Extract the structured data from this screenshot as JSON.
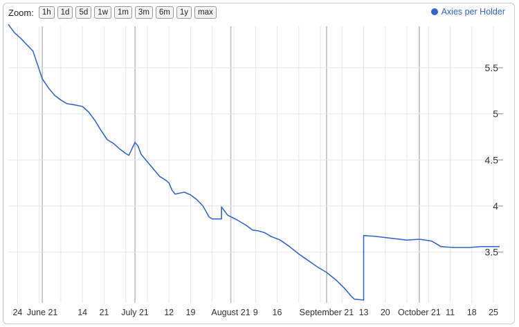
{
  "zoom": {
    "label": "Zoom:",
    "buttons": [
      "1h",
      "1d",
      "5d",
      "1w",
      "1m",
      "3m",
      "6m",
      "1y",
      "max"
    ]
  },
  "legend": {
    "label": "Axies per Holder",
    "color": "#3366cc"
  },
  "chart_data": {
    "type": "line",
    "title": "",
    "xlabel": "",
    "ylabel": "",
    "grid": true,
    "legend_position": "top-right",
    "ylim": [
      2.95,
      5.95
    ],
    "y_ticks": [
      3.5,
      4,
      4.5,
      5,
      5.5
    ],
    "y_tick_labels": [
      "3.5",
      "4",
      "4.5",
      "5",
      "5.5"
    ],
    "xlim": [
      "2021-05-21",
      "2021-10-27"
    ],
    "x_ticks": [
      {
        "label": "24",
        "date": "2021-05-24"
      },
      {
        "label": "June 21",
        "date": "2021-06-01"
      },
      {
        "label": "14",
        "date": "2021-06-14"
      },
      {
        "label": "21",
        "date": "2021-06-21"
      },
      {
        "label": "July 21",
        "date": "2021-07-01"
      },
      {
        "label": "12",
        "date": "2021-07-12"
      },
      {
        "label": "19",
        "date": "2021-07-19"
      },
      {
        "label": "August 21",
        "date": "2021-08-01"
      },
      {
        "label": "9",
        "date": "2021-08-09"
      },
      {
        "label": "16",
        "date": "2021-08-16"
      },
      {
        "label": "September 21",
        "date": "2021-09-01"
      },
      {
        "label": "13",
        "date": "2021-09-13"
      },
      {
        "label": "20",
        "date": "2021-09-20"
      },
      {
        "label": "October 21",
        "date": "2021-10-01"
      },
      {
        "label": "11",
        "date": "2021-10-11"
      },
      {
        "label": "18",
        "date": "2021-10-18"
      },
      {
        "label": "25",
        "date": "2021-10-25"
      }
    ],
    "series": [
      {
        "name": "Axies per Holder",
        "color": "#3366cc",
        "points": [
          [
            "2021-05-21",
            5.97
          ],
          [
            "2021-05-23",
            5.88
          ],
          [
            "2021-05-25",
            5.82
          ],
          [
            "2021-05-27",
            5.75
          ],
          [
            "2021-05-29",
            5.68
          ],
          [
            "2021-05-31",
            5.48
          ],
          [
            "2021-06-01",
            5.38
          ],
          [
            "2021-06-03",
            5.28
          ],
          [
            "2021-06-05",
            5.2
          ],
          [
            "2021-06-07",
            5.15
          ],
          [
            "2021-06-09",
            5.11
          ],
          [
            "2021-06-11",
            5.1
          ],
          [
            "2021-06-14",
            5.08
          ],
          [
            "2021-06-16",
            5.02
          ],
          [
            "2021-06-18",
            4.93
          ],
          [
            "2021-06-20",
            4.82
          ],
          [
            "2021-06-22",
            4.72
          ],
          [
            "2021-06-24",
            4.68
          ],
          [
            "2021-06-26",
            4.62
          ],
          [
            "2021-06-28",
            4.57
          ],
          [
            "2021-06-29",
            4.55
          ],
          [
            "2021-06-30",
            4.62
          ],
          [
            "2021-07-01",
            4.69
          ],
          [
            "2021-07-02",
            4.65
          ],
          [
            "2021-07-03",
            4.56
          ],
          [
            "2021-07-05",
            4.48
          ],
          [
            "2021-07-07",
            4.4
          ],
          [
            "2021-07-09",
            4.32
          ],
          [
            "2021-07-11",
            4.28
          ],
          [
            "2021-07-12",
            4.25
          ],
          [
            "2021-07-13",
            4.17
          ],
          [
            "2021-07-14",
            4.13
          ],
          [
            "2021-07-17",
            4.15
          ],
          [
            "2021-07-19",
            4.12
          ],
          [
            "2021-07-21",
            4.07
          ],
          [
            "2021-07-23",
            4.0
          ],
          [
            "2021-07-25",
            3.88
          ],
          [
            "2021-07-26",
            3.86
          ],
          [
            "2021-07-29",
            3.86
          ],
          [
            "2021-07-29",
            3.99
          ],
          [
            "2021-07-31",
            3.9
          ],
          [
            "2021-08-03",
            3.85
          ],
          [
            "2021-08-06",
            3.79
          ],
          [
            "2021-08-08",
            3.74
          ],
          [
            "2021-08-10",
            3.73
          ],
          [
            "2021-08-12",
            3.71
          ],
          [
            "2021-08-14",
            3.67
          ],
          [
            "2021-08-17",
            3.63
          ],
          [
            "2021-08-20",
            3.56
          ],
          [
            "2021-08-23",
            3.48
          ],
          [
            "2021-08-26",
            3.41
          ],
          [
            "2021-08-29",
            3.34
          ],
          [
            "2021-09-01",
            3.28
          ],
          [
            "2021-09-04",
            3.2
          ],
          [
            "2021-09-07",
            3.1
          ],
          [
            "2021-09-09",
            3.02
          ],
          [
            "2021-09-10",
            2.99
          ],
          [
            "2021-09-13",
            2.98
          ],
          [
            "2021-09-13",
            3.68
          ],
          [
            "2021-09-17",
            3.67
          ],
          [
            "2021-09-22",
            3.65
          ],
          [
            "2021-09-27",
            3.63
          ],
          [
            "2021-10-01",
            3.64
          ],
          [
            "2021-10-05",
            3.62
          ],
          [
            "2021-10-08",
            3.56
          ],
          [
            "2021-10-12",
            3.55
          ],
          [
            "2021-10-17",
            3.55
          ],
          [
            "2021-10-21",
            3.56
          ],
          [
            "2021-10-27",
            3.56
          ]
        ]
      }
    ]
  }
}
